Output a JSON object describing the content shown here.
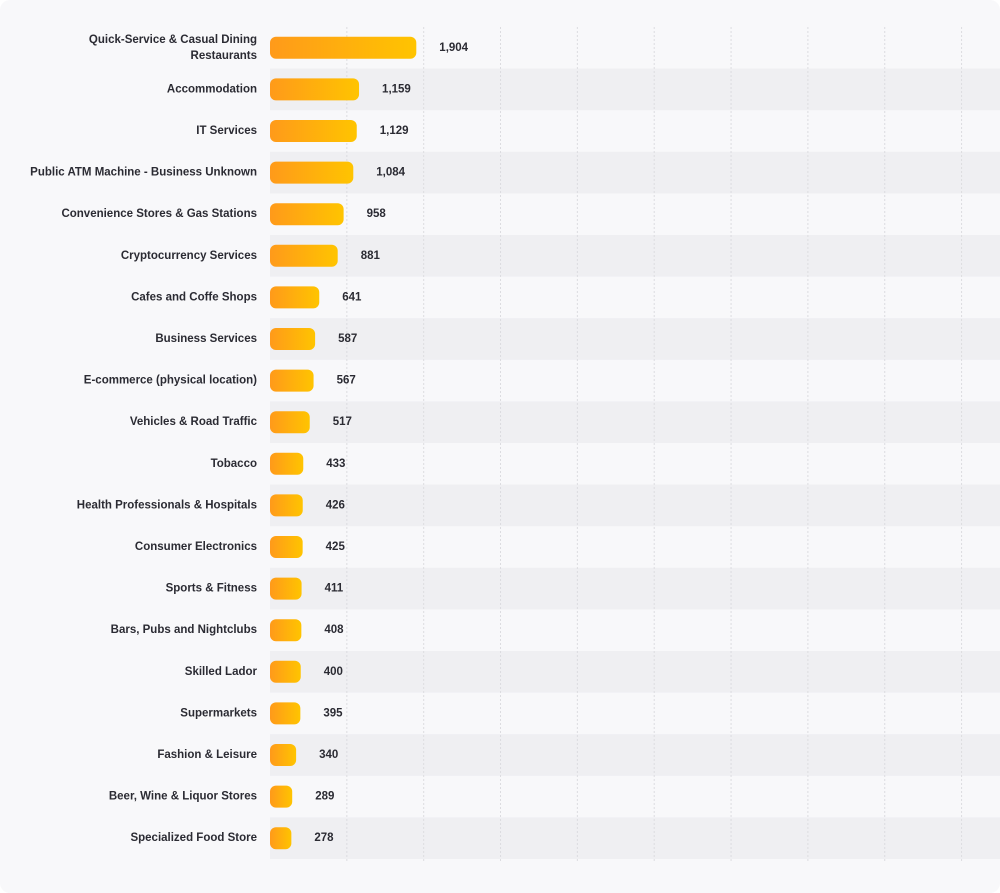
{
  "chart_data": {
    "type": "bar",
    "orientation": "horizontal",
    "categories": [
      [
        "Quick-Service & Casual Dining",
        "Restaurants"
      ],
      [
        "Accommodation"
      ],
      [
        "IT Services"
      ],
      [
        "Public ATM Machine - Business Unknown"
      ],
      [
        "Convenience Stores & Gas Stations"
      ],
      [
        "Cryptocurrency Services"
      ],
      [
        "Cafes and Coffe Shops"
      ],
      [
        "Business Services"
      ],
      [
        "E-commerce (physical location)"
      ],
      [
        "Vehicles & Road Traffic"
      ],
      [
        "Tobacco"
      ],
      [
        "Health Professionals & Hospitals"
      ],
      [
        "Consumer Electronics"
      ],
      [
        "Sports & Fitness"
      ],
      [
        "Bars, Pubs and Nightclubs"
      ],
      [
        "Skilled Lador"
      ],
      [
        "Supermarkets"
      ],
      [
        "Fashion & Leisure"
      ],
      [
        "Beer, Wine & Liquor Stores"
      ],
      [
        "Specialized Food Store"
      ]
    ],
    "values": [
      1904,
      1159,
      1129,
      1084,
      958,
      881,
      641,
      587,
      567,
      517,
      433,
      426,
      425,
      411,
      408,
      400,
      395,
      340,
      289,
      278
    ],
    "value_labels": [
      "1,904",
      "1,159",
      "1,129",
      "1,084",
      "958",
      "881",
      "641",
      "587",
      "567",
      "517",
      "433",
      "426",
      "425",
      "411",
      "408",
      "400",
      "395",
      "340",
      "289",
      "278"
    ],
    "xlim": [
      0,
      9500
    ],
    "grid": true,
    "legend": "none",
    "colors": {
      "bar_start": "#ff9a1a",
      "bar_end": "#ffc400",
      "stripe": "#efeff2",
      "grid": "#dcdce0",
      "text": "#2b2b33"
    }
  }
}
